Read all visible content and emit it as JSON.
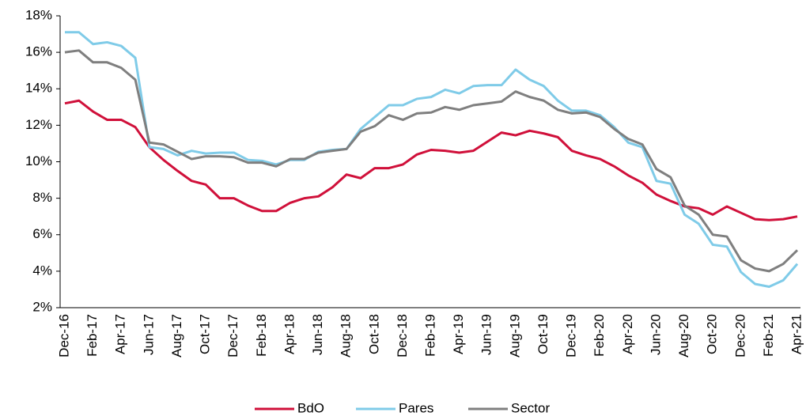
{
  "chart_data": {
    "type": "line",
    "categories": [
      "Dec-16",
      null,
      "Feb-17",
      null,
      "Apr-17",
      null,
      "Jun-17",
      null,
      "Aug-17",
      null,
      "Oct-17",
      null,
      "Dec-17",
      null,
      "Feb-18",
      null,
      "Apr-18",
      null,
      "Jun-18",
      null,
      "Aug-18",
      null,
      "Oct-18",
      null,
      "Dec-18",
      null,
      "Feb-19",
      null,
      "Apr-19",
      null,
      "Jun-19",
      null,
      "Aug-19",
      null,
      "Oct-19",
      null,
      "Dec-19",
      null,
      "Feb-20",
      null,
      "Apr-20",
      null,
      "Jun-20",
      null,
      "Aug-20",
      null,
      "Oct-20",
      null,
      "Dec-20",
      null,
      "Feb-21",
      null,
      "Apr-21"
    ],
    "series": [
      {
        "name": "BdO",
        "color": "#d0103a",
        "values": [
          13.2,
          13.35,
          12.75,
          12.3,
          12.3,
          11.9,
          10.8,
          10.1,
          9.5,
          8.95,
          8.75,
          8.0,
          8.0,
          7.6,
          7.3,
          7.3,
          7.75,
          8.0,
          8.1,
          8.6,
          9.3,
          9.1,
          9.65,
          9.65,
          9.85,
          10.4,
          10.65,
          10.6,
          10.5,
          10.6,
          11.1,
          11.6,
          11.45,
          11.7,
          11.55,
          11.35,
          10.6,
          10.35,
          10.15,
          9.75,
          9.25,
          8.85,
          8.2,
          7.85,
          7.55,
          7.45,
          7.1,
          7.55,
          7.2,
          6.85,
          6.8,
          6.85,
          7.0
        ]
      },
      {
        "name": "Pares",
        "color": "#7fcbe8",
        "values": [
          17.1,
          17.1,
          16.45,
          16.55,
          16.35,
          15.7,
          10.8,
          10.7,
          10.35,
          10.6,
          10.45,
          10.5,
          10.5,
          10.1,
          10.05,
          9.85,
          10.1,
          10.1,
          10.55,
          10.65,
          10.7,
          11.8,
          12.45,
          13.1,
          13.1,
          13.45,
          13.55,
          13.95,
          13.75,
          14.15,
          14.2,
          14.2,
          15.05,
          14.5,
          14.15,
          13.35,
          12.8,
          12.8,
          12.55,
          11.9,
          11.05,
          10.8,
          8.95,
          8.8,
          7.1,
          6.6,
          5.45,
          5.35,
          3.95,
          3.3,
          3.15,
          3.5,
          4.4
        ]
      },
      {
        "name": "Sector",
        "color": "#7f7f7f",
        "values": [
          16.0,
          16.1,
          15.45,
          15.45,
          15.15,
          14.5,
          11.05,
          10.95,
          10.55,
          10.15,
          10.3,
          10.3,
          10.25,
          9.95,
          9.95,
          9.75,
          10.15,
          10.15,
          10.5,
          10.6,
          10.7,
          11.65,
          11.95,
          12.55,
          12.3,
          12.65,
          12.7,
          13.0,
          12.85,
          13.1,
          13.2,
          13.3,
          13.85,
          13.55,
          13.35,
          12.85,
          12.65,
          12.7,
          12.45,
          11.8,
          11.25,
          10.95,
          9.6,
          9.15,
          7.6,
          7.1,
          6.0,
          5.9,
          4.6,
          4.15,
          4.0,
          4.4,
          5.15
        ]
      }
    ],
    "ylim": [
      2,
      18
    ],
    "yticks": [
      {
        "value": 2,
        "label": "2%"
      },
      {
        "value": 4,
        "label": "4%"
      },
      {
        "value": 6,
        "label": "6%"
      },
      {
        "value": 8,
        "label": "8%"
      },
      {
        "value": 10,
        "label": "10%"
      },
      {
        "value": 12,
        "label": "12%"
      },
      {
        "value": 14,
        "label": "14%"
      },
      {
        "value": 16,
        "label": "16%"
      },
      {
        "value": 18,
        "label": "18%"
      }
    ],
    "grid": false,
    "legend": "bottom"
  }
}
